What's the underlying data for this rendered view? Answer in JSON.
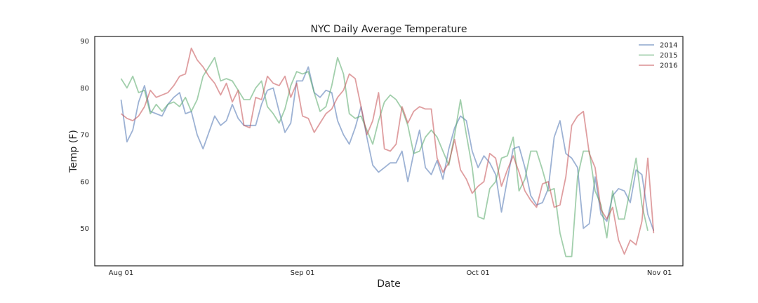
{
  "chart_data": {
    "type": "line",
    "title": "NYC Daily Average Temperature",
    "xlabel": "Date",
    "ylabel": "Temp (F)",
    "x_start": "2016-08-01",
    "x_ticks": [
      {
        "label": "Aug 01",
        "day": 0
      },
      {
        "label": "Sep 01",
        "day": 31
      },
      {
        "label": "Oct 01",
        "day": 61
      },
      {
        "label": "Nov 01",
        "day": 92
      }
    ],
    "xlim": [
      -4.5,
      96
    ],
    "ylim": [
      42,
      91
    ],
    "y_ticks": [
      50,
      60,
      70,
      80,
      90
    ],
    "grid": false,
    "legend_position": "top-right",
    "series": [
      {
        "name": "2014",
        "color": "#4c72b0",
        "values": [
          77.5,
          68.5,
          71,
          77,
          80.5,
          75,
          74.5,
          74,
          76.5,
          78,
          79,
          74.5,
          75,
          70,
          67,
          70.5,
          74,
          72,
          73,
          76.5,
          73.5,
          72,
          72,
          72,
          76.5,
          79.5,
          80,
          75,
          70.5,
          72.5,
          81.5,
          81.5,
          84.5,
          79,
          78,
          79.5,
          79,
          73,
          70,
          68,
          71.5,
          76,
          69.5,
          63.5,
          62,
          63,
          64,
          64,
          66.5,
          60,
          66,
          71,
          63,
          61.5,
          64.5,
          60.5,
          67,
          71.5,
          74,
          73,
          66.5,
          63,
          65.5,
          64,
          61.5,
          53.5,
          60.5,
          67,
          67.5,
          63,
          57,
          55,
          55.5,
          58.5,
          69.5,
          73,
          66,
          65,
          63,
          50,
          51,
          61,
          53,
          51.5,
          57,
          58.5,
          58,
          55.5,
          62.5,
          61.5,
          53,
          49.5
        ]
      },
      {
        "name": "2015",
        "color": "#55a868",
        "values": [
          82,
          80,
          82.5,
          79,
          79.5,
          74.5,
          76.5,
          75,
          76.5,
          77,
          76,
          78,
          75,
          77.5,
          82.5,
          84.5,
          86.5,
          81.5,
          82,
          81.5,
          79.5,
          77.5,
          77.5,
          80,
          81.5,
          76,
          74.5,
          72.5,
          75.5,
          80.5,
          83.5,
          83,
          83.5,
          79,
          75,
          76,
          80.5,
          86.5,
          83,
          74.5,
          73.5,
          74,
          71,
          68,
          73,
          77,
          78.5,
          77.5,
          75.5,
          72,
          66,
          66.5,
          69.5,
          71,
          69.5,
          66.5,
          63.5,
          70,
          77.5,
          70,
          63,
          52.5,
          52,
          58.5,
          60,
          65,
          65.5,
          69.5,
          58,
          60.5,
          66.5,
          66.5,
          62.5,
          58,
          58.5,
          49,
          44,
          44,
          61,
          66.5,
          66.5,
          58,
          55,
          48,
          58,
          52,
          52,
          58.5,
          65,
          55,
          49.5
        ]
      },
      {
        "name": "2016",
        "color": "#c44e52",
        "values": [
          74.5,
          73.5,
          73,
          74,
          76,
          79.5,
          78,
          78.5,
          79,
          80.5,
          82.5,
          83,
          88.5,
          86,
          84.5,
          82.5,
          81,
          78.5,
          81,
          77,
          79.5,
          72,
          71.5,
          78,
          77.5,
          82.5,
          81,
          80.5,
          82.5,
          78,
          81,
          74,
          73.5,
          70.5,
          72.5,
          74.5,
          75.5,
          78,
          79.5,
          83,
          82,
          76,
          70,
          73,
          79,
          67,
          66.5,
          68,
          76,
          72.5,
          75,
          76,
          75.5,
          75.5,
          65,
          62,
          64,
          69,
          62.5,
          60.5,
          57.5,
          59,
          60,
          66,
          65,
          59,
          62.5,
          65.5,
          62,
          58,
          56,
          54.5,
          59.5,
          60,
          54.5,
          55,
          61,
          72,
          74,
          75,
          66,
          63,
          54,
          52,
          54.5,
          47.5,
          44.5,
          47.5,
          46.5,
          51.5,
          65,
          49
        ]
      }
    ]
  }
}
